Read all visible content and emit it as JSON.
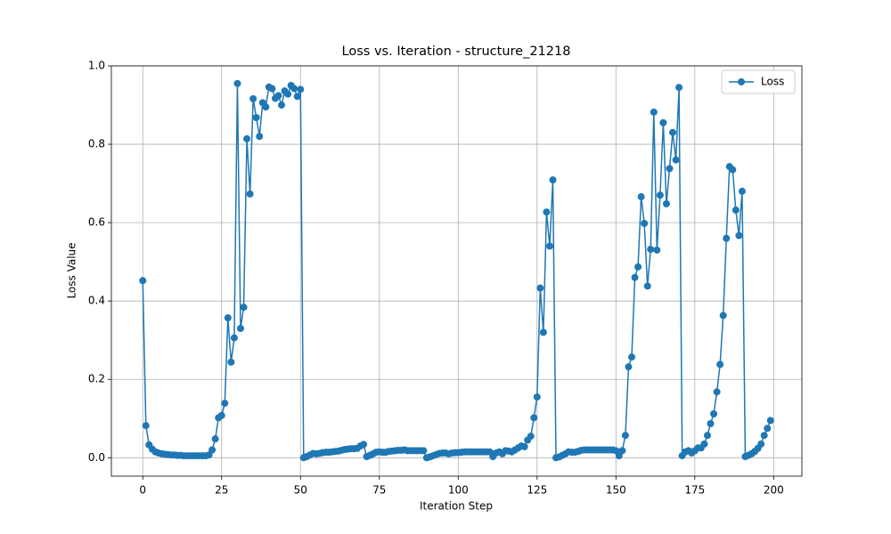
{
  "chart_data": {
    "type": "line",
    "title": "Loss vs. Iteration - structure_21218",
    "x_label": "Iteration Step",
    "y_label": "Loss Value",
    "x": [
      0,
      1,
      2,
      3,
      4,
      5,
      6,
      7,
      8,
      9,
      10,
      11,
      12,
      13,
      14,
      15,
      16,
      17,
      18,
      19,
      20,
      21,
      22,
      23,
      24,
      25,
      26,
      27,
      28,
      29,
      30,
      31,
      32,
      33,
      34,
      35,
      36,
      37,
      38,
      39,
      40,
      41,
      42,
      43,
      44,
      45,
      46,
      47,
      48,
      49,
      50,
      51,
      52,
      53,
      54,
      55,
      56,
      57,
      58,
      59,
      60,
      61,
      62,
      63,
      64,
      65,
      66,
      67,
      68,
      69,
      70,
      71,
      72,
      73,
      74,
      75,
      76,
      77,
      78,
      79,
      80,
      81,
      82,
      83,
      84,
      85,
      86,
      87,
      88,
      89,
      90,
      91,
      92,
      93,
      94,
      95,
      96,
      97,
      98,
      99,
      100,
      101,
      102,
      103,
      104,
      105,
      106,
      107,
      108,
      109,
      110,
      111,
      112,
      113,
      114,
      115,
      116,
      117,
      118,
      119,
      120,
      121,
      122,
      123,
      124,
      125,
      126,
      127,
      128,
      129,
      130,
      131,
      132,
      133,
      134,
      135,
      136,
      137,
      138,
      139,
      140,
      141,
      142,
      143,
      144,
      145,
      146,
      147,
      148,
      149,
      150,
      151,
      152,
      153,
      154,
      155,
      156,
      157,
      158,
      159,
      160,
      161,
      162,
      163,
      164,
      165,
      166,
      167,
      168,
      169,
      170,
      171,
      172,
      173,
      174,
      175,
      176,
      177,
      178,
      179,
      180,
      181,
      182,
      183,
      184,
      185,
      186,
      187,
      188,
      189,
      190,
      191,
      192,
      193,
      194,
      195,
      196,
      197,
      198,
      199
    ],
    "series": [
      {
        "name": "Loss",
        "color": "#1f77b4",
        "values": [
          0.452,
          0.082,
          0.033,
          0.022,
          0.015,
          0.012,
          0.01,
          0.009,
          0.008,
          0.007,
          0.007,
          0.006,
          0.006,
          0.005,
          0.005,
          0.005,
          0.005,
          0.005,
          0.005,
          0.005,
          0.005,
          0.007,
          0.02,
          0.048,
          0.102,
          0.108,
          0.139,
          0.357,
          0.244,
          0.306,
          0.955,
          0.33,
          0.384,
          0.814,
          0.673,
          0.916,
          0.868,
          0.82,
          0.906,
          0.895,
          0.946,
          0.942,
          0.917,
          0.924,
          0.9,
          0.936,
          0.928,
          0.95,
          0.942,
          0.922,
          0.94,
          0.0,
          0.003,
          0.007,
          0.011,
          0.01,
          0.011,
          0.013,
          0.014,
          0.014,
          0.015,
          0.016,
          0.017,
          0.019,
          0.021,
          0.022,
          0.023,
          0.023,
          0.024,
          0.03,
          0.034,
          0.003,
          0.006,
          0.01,
          0.014,
          0.015,
          0.014,
          0.014,
          0.016,
          0.017,
          0.018,
          0.019,
          0.019,
          0.02,
          0.018,
          0.018,
          0.018,
          0.018,
          0.018,
          0.018,
          0.0,
          0.002,
          0.005,
          0.008,
          0.011,
          0.012,
          0.012,
          0.01,
          0.012,
          0.013,
          0.013,
          0.014,
          0.015,
          0.015,
          0.015,
          0.015,
          0.015,
          0.015,
          0.015,
          0.015,
          0.015,
          0.003,
          0.012,
          0.015,
          0.01,
          0.018,
          0.017,
          0.015,
          0.02,
          0.025,
          0.03,
          0.028,
          0.045,
          0.055,
          0.102,
          0.155,
          0.433,
          0.32,
          0.627,
          0.54,
          0.709,
          0.0,
          0.002,
          0.006,
          0.01,
          0.015,
          0.014,
          0.014,
          0.016,
          0.019,
          0.02,
          0.02,
          0.02,
          0.02,
          0.02,
          0.02,
          0.02,
          0.02,
          0.02,
          0.02,
          0.018,
          0.005,
          0.018,
          0.057,
          0.232,
          0.257,
          0.46,
          0.487,
          0.666,
          0.598,
          0.438,
          0.532,
          0.882,
          0.53,
          0.67,
          0.855,
          0.648,
          0.738,
          0.83,
          0.76,
          0.945,
          0.005,
          0.015,
          0.018,
          0.012,
          0.018,
          0.025,
          0.025,
          0.035,
          0.057,
          0.087,
          0.112,
          0.168,
          0.238,
          0.363,
          0.56,
          0.743,
          0.735,
          0.632,
          0.567,
          0.68,
          0.003,
          0.006,
          0.01,
          0.016,
          0.024,
          0.035,
          0.057,
          0.075,
          0.095
        ]
      }
    ],
    "xlim": [
      -9.95,
      208.95
    ],
    "ylim": [
      -0.047,
      1.0
    ],
    "xticks": [
      0,
      25,
      50,
      75,
      100,
      125,
      150,
      175,
      200
    ],
    "yticks": [
      {
        "value": 0,
        "label": "0.0"
      },
      0.2,
      0.4,
      0.6,
      0.8,
      {
        "value": 1,
        "label": "1.0"
      }
    ],
    "grid": true,
    "legend": "upper-right"
  }
}
